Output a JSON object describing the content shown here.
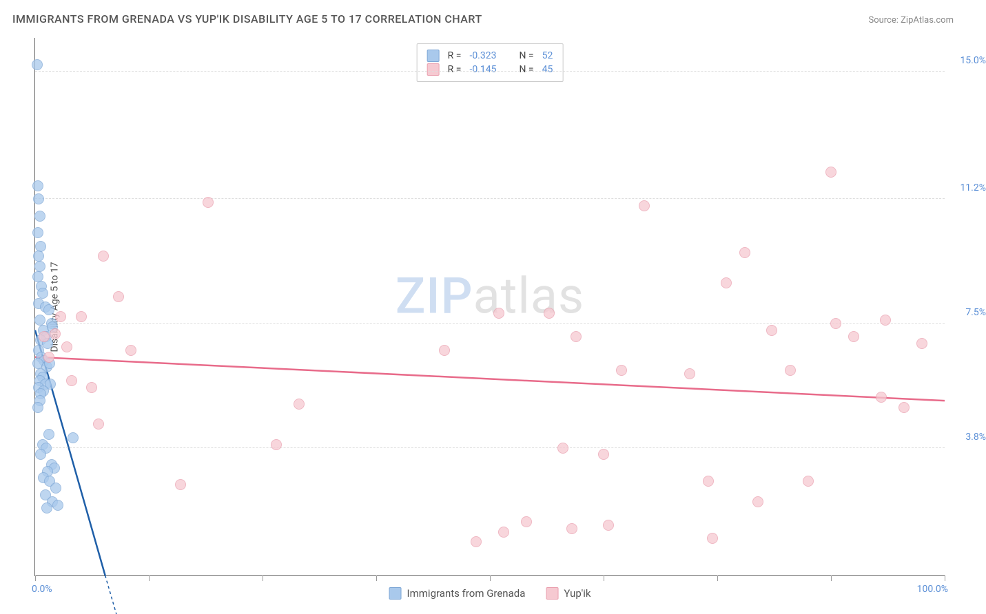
{
  "title": "IMMIGRANTS FROM GRENADA VS YUP'IK DISABILITY AGE 5 TO 17 CORRELATION CHART",
  "source_label": "Source: ZipAtlas.com",
  "ylabel": "Disability Age 5 to 17",
  "watermark_zip": "ZIP",
  "watermark_atlas": "atlas",
  "xlim": [
    0,
    100
  ],
  "ylim": [
    0,
    16
  ],
  "xticks": [
    0,
    12.5,
    25,
    37.5,
    50,
    62.5,
    75,
    87.5,
    100
  ],
  "xtick_labels": {
    "0": "0.0%",
    "100": "100.0%"
  },
  "ygrid": [
    3.8,
    7.5,
    11.2,
    15.0
  ],
  "ytick_labels": [
    "3.8%",
    "7.5%",
    "11.2%",
    "15.0%"
  ],
  "grid_color": "#dddddd",
  "axis_color": "#666666",
  "tick_label_color": "#5b8fd6",
  "series": [
    {
      "name": "Immigrants from Grenada",
      "fill": "#a9c9ec",
      "stroke": "#7fa8d6",
      "line_color": "#1f5fa8",
      "r_label": "R = ",
      "r_value": "-0.323",
      "n_label": "N = ",
      "n_value": "52",
      "trend": {
        "x1": 0,
        "y1": 7.3,
        "x2": 7.7,
        "y2": 0
      },
      "trend_dash": {
        "x1": 7.7,
        "y1": 0,
        "x2": 9.2,
        "y2": -1.4
      },
      "points": [
        [
          0.2,
          15.2
        ],
        [
          0.3,
          11.6
        ],
        [
          0.4,
          11.2
        ],
        [
          0.5,
          10.7
        ],
        [
          0.3,
          10.2
        ],
        [
          0.6,
          9.8
        ],
        [
          0.4,
          9.5
        ],
        [
          0.5,
          9.2
        ],
        [
          0.3,
          8.9
        ],
        [
          0.7,
          8.6
        ],
        [
          0.8,
          8.4
        ],
        [
          0.4,
          8.1
        ],
        [
          1.1,
          8.0
        ],
        [
          1.5,
          7.9
        ],
        [
          0.5,
          7.6
        ],
        [
          1.8,
          7.5
        ],
        [
          0.9,
          7.3
        ],
        [
          1.2,
          7.1
        ],
        [
          0.6,
          7.0
        ],
        [
          1.4,
          6.9
        ],
        [
          0.4,
          6.7
        ],
        [
          1.9,
          7.4
        ],
        [
          0.7,
          6.5
        ],
        [
          1.0,
          6.4
        ],
        [
          0.3,
          6.3
        ],
        [
          1.3,
          6.2
        ],
        [
          0.6,
          6.0
        ],
        [
          1.6,
          6.3
        ],
        [
          0.8,
          5.9
        ],
        [
          0.5,
          5.8
        ],
        [
          1.1,
          5.7
        ],
        [
          0.4,
          5.6
        ],
        [
          1.7,
          5.7
        ],
        [
          0.9,
          5.5
        ],
        [
          0.6,
          5.4
        ],
        [
          0.5,
          5.2
        ],
        [
          0.3,
          5.0
        ],
        [
          1.5,
          4.2
        ],
        [
          4.2,
          4.1
        ],
        [
          0.8,
          3.9
        ],
        [
          1.2,
          3.8
        ],
        [
          0.6,
          3.6
        ],
        [
          1.8,
          3.3
        ],
        [
          2.1,
          3.2
        ],
        [
          1.4,
          3.1
        ],
        [
          0.9,
          2.9
        ],
        [
          1.6,
          2.8
        ],
        [
          2.3,
          2.6
        ],
        [
          1.1,
          2.4
        ],
        [
          1.9,
          2.2
        ],
        [
          2.5,
          2.1
        ],
        [
          1.3,
          2.0
        ]
      ]
    },
    {
      "name": "Yup'ik",
      "fill": "#f6c9d1",
      "stroke": "#eaa0af",
      "line_color": "#e86b8a",
      "r_label": "R = ",
      "r_value": "-0.145",
      "n_label": "N = ",
      "n_value": "45",
      "trend": {
        "x1": 0,
        "y1": 6.5,
        "x2": 100,
        "y2": 5.2
      },
      "points": [
        [
          1.0,
          7.1
        ],
        [
          2.2,
          7.2
        ],
        [
          1.5,
          6.5
        ],
        [
          2.8,
          7.7
        ],
        [
          3.5,
          6.8
        ],
        [
          5.1,
          7.7
        ],
        [
          4.0,
          5.8
        ],
        [
          6.2,
          5.6
        ],
        [
          7.0,
          4.5
        ],
        [
          7.5,
          9.5
        ],
        [
          9.2,
          8.3
        ],
        [
          10.5,
          6.7
        ],
        [
          16.0,
          2.7
        ],
        [
          19.0,
          11.1
        ],
        [
          26.5,
          3.9
        ],
        [
          29.0,
          5.1
        ],
        [
          45.0,
          6.7
        ],
        [
          48.5,
          1.0
        ],
        [
          51.0,
          7.8
        ],
        [
          51.5,
          1.3
        ],
        [
          54.0,
          1.6
        ],
        [
          56.5,
          7.8
        ],
        [
          58.0,
          3.8
        ],
        [
          59.0,
          1.4
        ],
        [
          59.5,
          7.1
        ],
        [
          62.5,
          3.6
        ],
        [
          63.0,
          1.5
        ],
        [
          64.5,
          6.1
        ],
        [
          67.0,
          11.0
        ],
        [
          72.0,
          6.0
        ],
        [
          74.0,
          2.8
        ],
        [
          74.5,
          1.1
        ],
        [
          76.0,
          8.7
        ],
        [
          78.0,
          9.6
        ],
        [
          79.5,
          2.2
        ],
        [
          81.0,
          7.3
        ],
        [
          83.0,
          6.1
        ],
        [
          85.0,
          2.8
        ],
        [
          87.5,
          12.0
        ],
        [
          88.0,
          7.5
        ],
        [
          90.0,
          7.1
        ],
        [
          93.0,
          5.3
        ],
        [
          93.5,
          7.6
        ],
        [
          95.5,
          5.0
        ],
        [
          97.5,
          6.9
        ]
      ]
    }
  ],
  "legend_bottom": [
    {
      "label": "Immigrants from Grenada",
      "series": 0
    },
    {
      "label": "Yup'ik",
      "series": 1
    }
  ]
}
